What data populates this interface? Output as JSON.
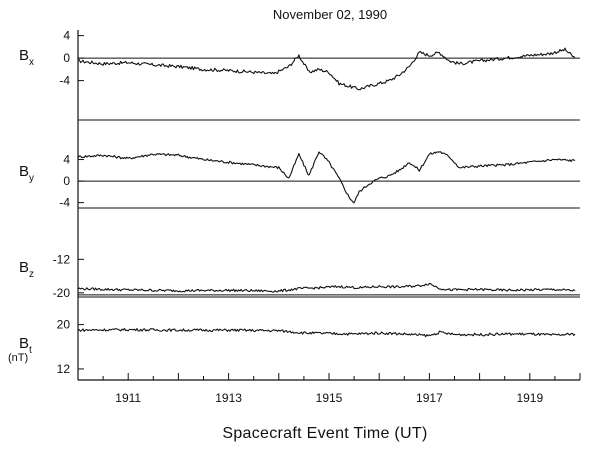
{
  "chart_data": {
    "type": "line",
    "title": "November 02, 1990",
    "xlabel": "Spacecraft Event Time (UT)",
    "x_tick_labels": [
      "1911",
      "1913",
      "1915",
      "1917",
      "1919"
    ],
    "x_ticks": [
      1911,
      1913,
      1915,
      1917,
      1919
    ],
    "xlim": [
      1910,
      1920
    ],
    "grid": false,
    "panels": [
      {
        "id": "bx",
        "label_main": "B",
        "label_sub": "x",
        "unit": "",
        "y_tick_labels": [
          "4",
          "0",
          "-4"
        ],
        "y_ticks": [
          4,
          0,
          -4
        ],
        "ylim": [
          -11,
          5
        ],
        "zero_line": 0,
        "x": [
          1910.0,
          1910.5,
          1911.0,
          1911.5,
          1912.0,
          1912.5,
          1913.0,
          1913.5,
          1913.9,
          1914.2,
          1914.4,
          1914.6,
          1914.8,
          1915.0,
          1915.2,
          1915.4,
          1915.6,
          1915.8,
          1916.0,
          1916.2,
          1916.4,
          1916.6,
          1916.8,
          1917.0,
          1917.2,
          1917.4,
          1917.6,
          1918.0,
          1918.5,
          1919.0,
          1919.4,
          1919.7,
          1919.9
        ],
        "y": [
          -0.5,
          -1.0,
          -0.8,
          -1.2,
          -1.5,
          -2.0,
          -2.2,
          -2.5,
          -2.8,
          -1.5,
          0.5,
          -2.5,
          -2.0,
          -2.5,
          -4.5,
          -5.0,
          -5.5,
          -5.0,
          -4.5,
          -4.0,
          -3.0,
          -1.5,
          1.0,
          0.5,
          1.0,
          -0.5,
          -1.0,
          -0.5,
          0.0,
          0.5,
          0.8,
          1.5,
          0.0
        ]
      },
      {
        "id": "by",
        "label_main": "B",
        "label_sub": "y",
        "unit": "",
        "y_tick_labels": [
          "4",
          "0",
          "-4"
        ],
        "y_ticks": [
          4,
          0,
          -4
        ],
        "ylim": [
          -5,
          8
        ],
        "zero_line": 0,
        "x": [
          1910.0,
          1910.5,
          1911.0,
          1911.5,
          1912.0,
          1912.5,
          1913.0,
          1913.5,
          1914.0,
          1914.2,
          1914.4,
          1914.6,
          1914.8,
          1915.0,
          1915.2,
          1915.4,
          1915.5,
          1915.6,
          1915.8,
          1916.0,
          1916.2,
          1916.4,
          1916.6,
          1916.8,
          1917.0,
          1917.2,
          1917.4,
          1917.6,
          1918.0,
          1918.5,
          1919.0,
          1919.5,
          1919.9
        ],
        "y": [
          4.5,
          4.8,
          4.2,
          5.0,
          4.8,
          4.0,
          3.5,
          3.0,
          2.5,
          0.5,
          5.0,
          1.0,
          5.5,
          3.5,
          0.5,
          -3.0,
          -4.0,
          -2.0,
          -0.5,
          0.5,
          1.0,
          2.0,
          3.5,
          2.0,
          5.0,
          5.5,
          4.5,
          2.5,
          2.8,
          3.0,
          3.5,
          4.0,
          3.8
        ]
      },
      {
        "id": "bz",
        "label_main": "B",
        "label_sub": "z",
        "unit": "",
        "y_tick_labels": [
          "-12",
          "-20"
        ],
        "y_ticks": [
          -12,
          -20
        ],
        "ylim": [
          -21,
          -5
        ],
        "zero_line": -20.5,
        "x": [
          1910.0,
          1911.0,
          1912.0,
          1913.0,
          1914.0,
          1914.4,
          1914.8,
          1915.2,
          1915.6,
          1916.0,
          1916.4,
          1916.8,
          1917.0,
          1917.2,
          1917.4,
          1918.0,
          1918.5,
          1919.0,
          1919.5,
          1919.9
        ],
        "y": [
          -19.0,
          -19.3,
          -19.5,
          -19.4,
          -19.6,
          -19.0,
          -18.8,
          -18.5,
          -18.8,
          -18.5,
          -18.6,
          -18.3,
          -17.8,
          -18.9,
          -19.3,
          -19.2,
          -19.4,
          -19.3,
          -19.2,
          -19.5
        ]
      },
      {
        "id": "bt",
        "label_main": "B",
        "label_sub": "t",
        "unit": "(nT)",
        "y_tick_labels": [
          "20",
          "12"
        ],
        "y_ticks": [
          20,
          12
        ],
        "ylim": [
          10,
          23
        ],
        "zero_line": null,
        "x": [
          1910.0,
          1911.0,
          1912.0,
          1913.0,
          1914.0,
          1914.5,
          1915.0,
          1915.5,
          1916.0,
          1916.5,
          1917.0,
          1917.2,
          1917.5,
          1918.0,
          1918.5,
          1919.0,
          1919.5,
          1919.9
        ],
        "y": [
          19.0,
          19.1,
          19.0,
          19.0,
          18.9,
          18.5,
          18.4,
          18.3,
          18.5,
          18.3,
          18.0,
          18.6,
          18.2,
          18.2,
          18.3,
          18.3,
          18.1,
          18.3
        ]
      }
    ]
  }
}
